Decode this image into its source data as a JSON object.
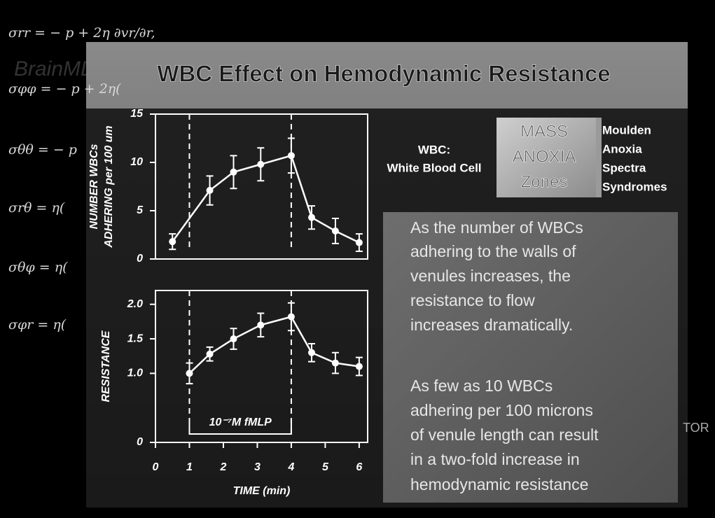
{
  "slide": {
    "title": "WBC Effect on Hemodynamic Resistance",
    "wbc_label": [
      "WBC:",
      "White Blood Cell"
    ],
    "logo": [
      "MASS",
      "ANOXIA",
      "Zones"
    ],
    "logo_caption": [
      "Moulden",
      "Anoxia",
      "Spectra",
      "Syndromes"
    ],
    "paragraphs": [
      [
        "As the number of WBCs",
        "adhering to the walls of",
        "venules increases, the",
        "resistance to flow",
        "increases dramatically."
      ],
      [
        "As few as 10 WBCs",
        "adhering per 100 microns",
        "of venule length can result",
        "in a two-fold increase in",
        "hemodynamic resistance"
      ]
    ],
    "equations": [
      "σrr = − p + 2η ∂vr/∂r,",
      "σφφ = − p + 2η(",
      "σθθ = − p",
      "σrθ = η(",
      "σθφ = η(",
      "σφr = η("
    ],
    "watermark": "BrainMD.com",
    "corner_text": "TOR"
  },
  "chart_data": [
    {
      "type": "line",
      "ylabel": [
        "NUMBER WBCs",
        "ADHERING per 100 um"
      ],
      "x": [
        0.5,
        1.6,
        2.3,
        3.1,
        4,
        4.6,
        5.3,
        6
      ],
      "series": [
        {
          "color": "#ffffff",
          "values": [
            1.8,
            7.1,
            9.0,
            9.8,
            10.7,
            4.3,
            2.9,
            1.7
          ],
          "errors": [
            0.8,
            1.5,
            1.7,
            1.7,
            1.8,
            1.2,
            1.3,
            0.9
          ]
        }
      ],
      "xlim": [
        0,
        6.25
      ],
      "ylim": [
        0,
        15
      ],
      "yticks": [
        0,
        5,
        10,
        15
      ],
      "markers": [
        1,
        4
      ]
    },
    {
      "type": "line",
      "ylabel": "RESISTANCE",
      "xlabel": "TIME (min)",
      "annotation": "10⁻⁷M fMLP",
      "x": [
        1,
        1.6,
        2.3,
        3.1,
        4,
        4.6,
        5.3,
        6
      ],
      "series": [
        {
          "color": "#ffffff",
          "values": [
            1.0,
            1.28,
            1.5,
            1.7,
            1.82,
            1.3,
            1.15,
            1.1
          ],
          "errors": [
            0.15,
            0.1,
            0.15,
            0.17,
            0.2,
            0.13,
            0.15,
            0.13
          ]
        }
      ],
      "xlim": [
        0,
        6.25
      ],
      "xticks": [
        0,
        1,
        2,
        3,
        4,
        5,
        6
      ],
      "ylim": [
        0,
        2.2
      ],
      "yticks": [
        0,
        {
          "value": 1,
          "label": "1.0"
        },
        1.5,
        {
          "value": 2,
          "label": "2.0"
        }
      ],
      "markers": [
        1,
        4
      ]
    }
  ]
}
